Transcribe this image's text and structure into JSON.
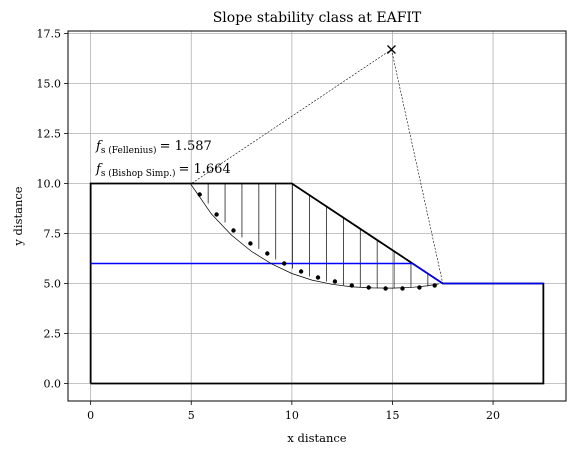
{
  "chart_data": {
    "type": "line",
    "title": "Slope stability class at EAFIT",
    "xlabel": "x distance",
    "ylabel": "y distance",
    "xlim": [
      -1.125,
      23.625
    ],
    "ylim": [
      -0.875,
      17.625
    ],
    "xticks": [
      0,
      5,
      10,
      15,
      20
    ],
    "yticks": [
      0.0,
      2.5,
      5.0,
      7.5,
      10.0,
      12.5,
      15.0,
      17.5
    ],
    "xtick_labels": [
      "0",
      "5",
      "10",
      "15",
      "20"
    ],
    "ytick_labels": [
      "0.0",
      "2.5",
      "5.0",
      "7.5",
      "10.0",
      "12.5",
      "15.0",
      "17.5"
    ],
    "grid": true,
    "annotations": {
      "fellenius": {
        "prefix": "f",
        "sub": "s (Fellenius)",
        "value": "= 1.587"
      },
      "bishop": {
        "prefix": "f",
        "sub": "s (Bishop Simp.)",
        "value": "= 1.664"
      }
    },
    "series": [
      {
        "role": "slope-outline",
        "color": "#000000",
        "x": [
          0,
          0,
          10,
          17.5,
          22.5,
          22.5,
          0
        ],
        "y": [
          0,
          10,
          10,
          5,
          5,
          0,
          0
        ]
      },
      {
        "role": "watertable",
        "color": "#0000ff",
        "x": [
          0,
          16,
          17.5,
          22.5
        ],
        "y": [
          6,
          6,
          5,
          5
        ]
      },
      {
        "role": "failure-surface",
        "color": "#000000",
        "x": [
          4.97,
          5.3,
          6.0,
          7.0,
          8.0,
          9.0,
          10.0,
          11.0,
          12.0,
          13.0,
          14.0,
          15.0,
          16.0,
          16.7,
          17.3
        ],
        "y": [
          9.97,
          9.5,
          8.48,
          7.42,
          6.6,
          5.98,
          5.5,
          5.17,
          4.96,
          4.83,
          4.78,
          4.77,
          4.81,
          4.88,
          4.98
        ]
      },
      {
        "role": "slice-midpoints",
        "color": "#000000",
        "x": [
          5.42,
          6.26,
          7.1,
          7.94,
          8.78,
          9.62,
          10.46,
          11.3,
          12.14,
          12.98,
          13.82,
          14.66,
          15.5,
          16.34,
          17.1
        ],
        "y": [
          9.45,
          8.45,
          7.65,
          7.0,
          6.5,
          6.0,
          5.6,
          5.3,
          5.1,
          4.9,
          4.8,
          4.75,
          4.75,
          4.8,
          4.9
        ]
      }
    ],
    "slices": {
      "x": [
        5.0,
        5.84,
        6.68,
        7.52,
        8.36,
        9.2,
        10.04,
        10.88,
        11.72,
        12.56,
        13.4,
        14.24,
        15.08,
        15.92,
        16.76,
        17.5
      ],
      "top": [
        10,
        10,
        10,
        10,
        10,
        10,
        9.97,
        9.41,
        8.85,
        8.29,
        7.73,
        7.17,
        6.61,
        6.05,
        5.49,
        5.0
      ],
      "bottom": [
        10,
        9.0,
        8.05,
        7.3,
        6.73,
        6.2,
        5.75,
        5.35,
        5.1,
        4.92,
        4.8,
        4.76,
        4.75,
        4.78,
        4.86,
        5.0
      ]
    },
    "circle_center": {
      "x": 14.95,
      "y": 16.7,
      "marker": "x"
    },
    "radius_lines": [
      {
        "x": [
          14.95,
          4.97
        ],
        "y": [
          16.7,
          9.97
        ]
      },
      {
        "x": [
          14.95,
          17.5
        ],
        "y": [
          16.7,
          5.0
        ]
      }
    ]
  }
}
